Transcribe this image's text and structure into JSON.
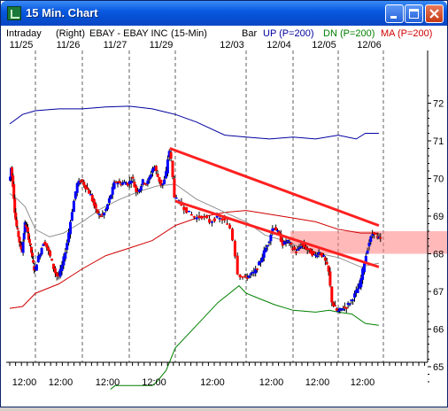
{
  "window": {
    "title": "15 Min. Chart",
    "minimize_icon": "minimize-icon",
    "maximize_icon": "maximize-icon",
    "close_icon": "close-icon"
  },
  "header": {
    "period": "Intraday",
    "axis_side": "(Right)",
    "symbol_desc": "EBAY - EBAY INC",
    "interval": "(15-Min)",
    "study_name": "Bar",
    "up_label": "UP (P=200)",
    "dn_label": "DN (P=200)",
    "ma_label": "MA (P=200)"
  },
  "colors": {
    "up_band": "#0000a0",
    "dn_band": "#008000",
    "ma": "#d00000",
    "candle_up": "#0000ff",
    "candle_down": "#ff0000",
    "trendline": "#ff2020",
    "gridline": "#606060"
  },
  "chart_data": {
    "type": "candlestick",
    "price_axis": {
      "ticks": [
        65,
        66,
        67,
        68,
        69,
        70,
        71,
        72
      ],
      "range": [
        64.4,
        72.6
      ],
      "side": "right"
    },
    "date_labels": [
      "11/25",
      "11/26",
      "11/27",
      "11/29",
      "12/03",
      "12/04",
      "12/05",
      "12/06"
    ],
    "time_labels": [
      "12:00",
      "12:00",
      "12:00",
      "12:00",
      "12:00",
      "12:00",
      "12:00",
      "12:00"
    ],
    "price_path": [
      [
        0,
        69.95
      ],
      [
        0.04,
        70.05
      ],
      [
        0.07,
        70.3
      ],
      [
        0.1,
        70.1
      ],
      [
        0.13,
        69.95
      ],
      [
        0.17,
        69.6
      ],
      [
        0.22,
        69.1
      ],
      [
        0.28,
        68.75
      ],
      [
        0.34,
        68.55
      ],
      [
        0.4,
        68.3
      ],
      [
        0.46,
        68.15
      ],
      [
        0.5,
        68.05
      ],
      [
        0.58,
        68.6
      ],
      [
        0.62,
        68.85
      ],
      [
        0.7,
        68.6
      ],
      [
        0.78,
        68.35
      ],
      [
        0.86,
        68.05
      ],
      [
        0.93,
        67.75
      ],
      [
        0.97,
        67.6
      ],
      [
        1.0,
        67.55
      ],
      [
        1.05,
        67.8
      ],
      [
        1.12,
        68.05
      ],
      [
        1.2,
        68.35
      ],
      [
        1.27,
        68.15
      ],
      [
        1.35,
        67.85
      ],
      [
        1.42,
        67.55
      ],
      [
        1.5,
        67.35
      ],
      [
        1.6,
        67.75
      ],
      [
        1.7,
        68.35
      ],
      [
        1.8,
        69.15
      ],
      [
        1.9,
        69.85
      ],
      [
        2.0,
        69.95
      ],
      [
        2.1,
        69.75
      ],
      [
        2.2,
        69.55
      ],
      [
        2.3,
        69.15
      ],
      [
        2.4,
        69.0
      ],
      [
        2.5,
        69.1
      ],
      [
        2.62,
        69.55
      ],
      [
        2.72,
        69.95
      ],
      [
        2.82,
        69.85
      ],
      [
        2.9,
        69.9
      ],
      [
        3.0,
        69.85
      ],
      [
        3.08,
        70.05
      ],
      [
        3.16,
        69.65
      ],
      [
        3.25,
        69.75
      ],
      [
        3.32,
        69.95
      ],
      [
        3.4,
        69.85
      ],
      [
        3.48,
        70.1
      ],
      [
        3.55,
        70.35
      ],
      [
        3.65,
        70.0
      ],
      [
        3.72,
        69.8
      ],
      [
        3.8,
        70.0
      ],
      [
        3.86,
        70.6
      ],
      [
        3.9,
        70.8
      ],
      [
        4.0,
        69.5
      ],
      [
        4.1,
        69.3
      ],
      [
        4.2,
        69.1
      ],
      [
        4.3,
        68.95
      ],
      [
        4.4,
        69.0
      ],
      [
        4.5,
        68.85
      ],
      [
        4.6,
        68.95
      ],
      [
        4.7,
        68.9
      ],
      [
        4.8,
        68.65
      ],
      [
        4.85,
        68.1
      ],
      [
        4.9,
        67.45
      ],
      [
        5.0,
        67.35
      ],
      [
        5.1,
        67.45
      ],
      [
        5.2,
        67.5
      ],
      [
        5.3,
        67.75
      ],
      [
        5.4,
        68.05
      ],
      [
        5.5,
        68.35
      ],
      [
        5.6,
        68.75
      ],
      [
        5.7,
        68.55
      ],
      [
        5.8,
        68.25
      ],
      [
        5.9,
        68.35
      ],
      [
        6.0,
        68.15
      ],
      [
        6.1,
        68.05
      ],
      [
        6.2,
        68.25
      ],
      [
        6.3,
        68.15
      ],
      [
        6.4,
        68.05
      ],
      [
        6.5,
        67.95
      ],
      [
        6.6,
        68.05
      ],
      [
        6.7,
        67.9
      ],
      [
        6.8,
        67.55
      ],
      [
        6.88,
        66.7
      ],
      [
        7.0,
        66.45
      ],
      [
        7.1,
        66.55
      ],
      [
        7.2,
        66.6
      ],
      [
        7.3,
        66.75
      ],
      [
        7.4,
        66.95
      ],
      [
        7.5,
        67.2
      ],
      [
        7.6,
        67.8
      ],
      [
        7.7,
        68.3
      ],
      [
        7.8,
        68.6
      ],
      [
        7.9,
        68.4
      ]
    ],
    "upper_band": [
      [
        0,
        71.45
      ],
      [
        0.5,
        71.7
      ],
      [
        1.0,
        71.8
      ],
      [
        1.5,
        71.85
      ],
      [
        2.0,
        71.85
      ],
      [
        2.5,
        71.9
      ],
      [
        3.0,
        71.92
      ],
      [
        3.5,
        71.85
      ],
      [
        4.0,
        71.7
      ],
      [
        4.3,
        71.5
      ],
      [
        4.7,
        71.15
      ],
      [
        5.0,
        71.1
      ],
      [
        5.5,
        71.05
      ],
      [
        6.0,
        71.1
      ],
      [
        6.5,
        71.05
      ],
      [
        7.0,
        71.15
      ],
      [
        7.4,
        71.05
      ],
      [
        7.6,
        71.2
      ],
      [
        7.9,
        71.2
      ]
    ],
    "lower_band": [
      [
        2.6,
        64.4
      ],
      [
        2.7,
        64.5
      ],
      [
        3.0,
        64.5
      ],
      [
        3.5,
        64.5
      ],
      [
        3.6,
        64.6
      ],
      [
        3.8,
        64.9
      ],
      [
        4.0,
        65.5
      ],
      [
        4.3,
        66.1
      ],
      [
        4.6,
        66.7
      ],
      [
        4.9,
        67.15
      ],
      [
        5.0,
        66.95
      ],
      [
        5.3,
        66.8
      ],
      [
        5.6,
        66.65
      ],
      [
        6.0,
        66.5
      ],
      [
        6.5,
        66.45
      ],
      [
        6.8,
        66.5
      ],
      [
        7.0,
        66.45
      ],
      [
        7.3,
        66.4
      ],
      [
        7.6,
        66.15
      ],
      [
        7.9,
        66.1
      ]
    ],
    "moving_average": [
      [
        0,
        66.55
      ],
      [
        0.5,
        66.6
      ],
      [
        1.0,
        66.95
      ],
      [
        1.5,
        67.2
      ],
      [
        2.0,
        67.6
      ],
      [
        2.5,
        67.95
      ],
      [
        3.0,
        68.15
      ],
      [
        3.5,
        68.35
      ],
      [
        4.0,
        68.75
      ],
      [
        4.3,
        68.95
      ],
      [
        4.7,
        69.1
      ],
      [
        5.0,
        69.15
      ],
      [
        5.5,
        69.05
      ],
      [
        6.0,
        68.95
      ],
      [
        6.5,
        68.85
      ],
      [
        7.0,
        68.65
      ],
      [
        7.5,
        68.55
      ],
      [
        7.9,
        68.55
      ]
    ],
    "short_average": [
      [
        0,
        69.6
      ],
      [
        0.3,
        69.45
      ],
      [
        0.6,
        69.25
      ],
      [
        1.0,
        68.65
      ],
      [
        1.3,
        68.45
      ],
      [
        1.6,
        68.55
      ],
      [
        2.0,
        68.85
      ],
      [
        2.4,
        69.2
      ],
      [
        2.8,
        69.45
      ],
      [
        3.2,
        69.65
      ],
      [
        3.6,
        69.8
      ],
      [
        4.0,
        69.85
      ],
      [
        4.3,
        69.45
      ],
      [
        4.7,
        69.1
      ],
      [
        5.0,
        68.85
      ],
      [
        5.4,
        68.5
      ],
      [
        5.8,
        68.35
      ],
      [
        6.2,
        68.15
      ],
      [
        6.6,
        68.0
      ],
      [
        7.0,
        67.9
      ],
      [
        7.5,
        67.65
      ],
      [
        7.9,
        67.75
      ]
    ],
    "trendlines": [
      {
        "from": [
          3.88,
          70.8
        ],
        "to": [
          7.9,
          68.75
        ]
      },
      {
        "from": [
          4.0,
          69.4
        ],
        "to": [
          7.9,
          67.65
        ]
      }
    ],
    "highlight_zone": [
      68.0,
      68.6
    ],
    "grid": "vertical-dashed"
  }
}
